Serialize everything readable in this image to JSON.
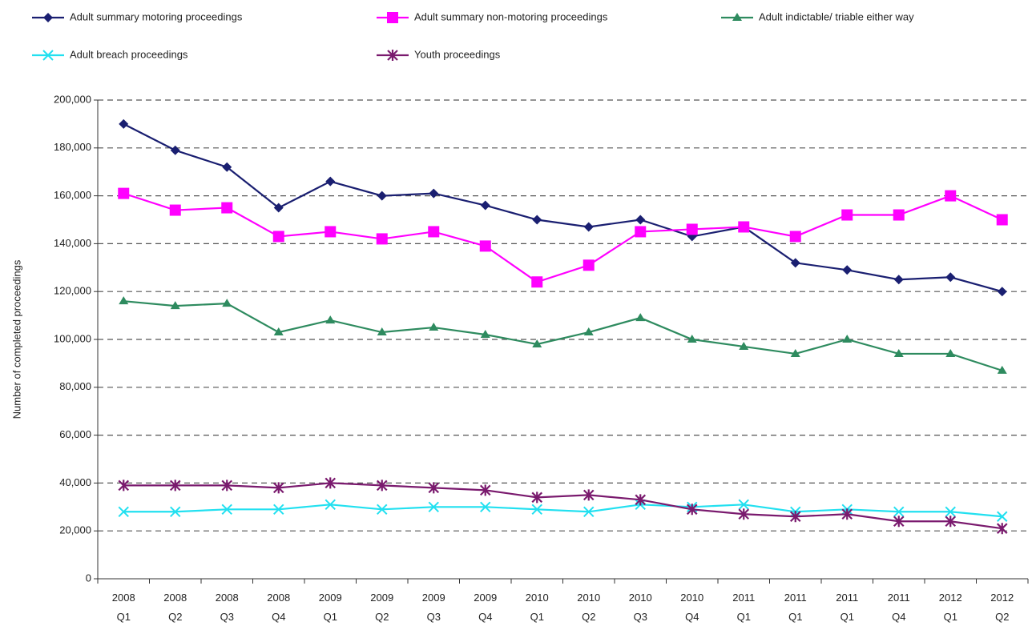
{
  "chart_data": {
    "type": "line",
    "y_label": "Number of completed proceedings",
    "categories": [
      "2008 Q1",
      "2008 Q2",
      "2008 Q3",
      "2008 Q4",
      "2009 Q1",
      "2009 Q2",
      "2009 Q3",
      "2009 Q4",
      "2010 Q1",
      "2010 Q2",
      "2010 Q3",
      "2010 Q4",
      "2011 Q1",
      "2011 Q1",
      "2011 Q1",
      "2011 Q4",
      "2012 Q1",
      "2012 Q2"
    ],
    "series": [
      {
        "name": "Adult summary motoring proceedings",
        "color": "#1a1f71",
        "marker": "diamond",
        "values": [
          190000,
          179000,
          172000,
          155000,
          166000,
          160000,
          161000,
          156000,
          150000,
          147000,
          150000,
          143000,
          147000,
          132000,
          129000,
          125000,
          126000,
          120000
        ]
      },
      {
        "name": "Adult summary non-motoring proceedings",
        "color": "#ff00ff",
        "marker": "square",
        "values": [
          161000,
          154000,
          155000,
          143000,
          145000,
          142000,
          145000,
          139000,
          124000,
          131000,
          145000,
          146000,
          147000,
          143000,
          152000,
          152000,
          160000,
          150000
        ]
      },
      {
        "name": "Adult indictable/ triable either way",
        "color": "#2e8b5f",
        "marker": "triangle",
        "values": [
          116000,
          114000,
          115000,
          103000,
          108000,
          103000,
          105000,
          102000,
          98000,
          103000,
          109000,
          100000,
          97000,
          94000,
          100000,
          94000,
          94000,
          87000
        ]
      },
      {
        "name": "Adult breach proceedings",
        "color": "#22e0f0",
        "marker": "x",
        "values": [
          28000,
          28000,
          29000,
          29000,
          31000,
          29000,
          30000,
          30000,
          29000,
          28000,
          31000,
          30000,
          31000,
          28000,
          29000,
          28000,
          28000,
          26000
        ]
      },
      {
        "name": "Youth proceedings",
        "color": "#7a1a6e",
        "marker": "star",
        "values": [
          39000,
          39000,
          39000,
          38000,
          40000,
          39000,
          38000,
          37000,
          34000,
          35000,
          33000,
          29000,
          27000,
          26000,
          27000,
          24000,
          24000,
          21000
        ]
      }
    ],
    "ylim": [
      0,
      200000
    ],
    "yticks": [
      0,
      {
        "value": 20000,
        "label": "20,000"
      },
      {
        "value": 40000,
        "label": "40,000"
      },
      {
        "value": 60000,
        "label": "60,000"
      },
      {
        "value": 80000,
        "label": "80,000"
      },
      {
        "value": 100000,
        "label": "100,000"
      },
      {
        "value": 120000,
        "label": "120,000"
      },
      {
        "value": 140000,
        "label": "140,000"
      },
      {
        "value": 160000,
        "label": "160,000"
      },
      {
        "value": 180000,
        "label": "180,000"
      },
      {
        "value": 200000,
        "label": "200,000"
      }
    ],
    "grid": true,
    "legend": "top"
  }
}
